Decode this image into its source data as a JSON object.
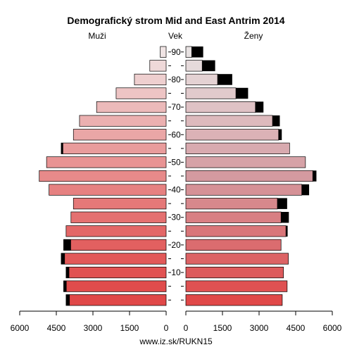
{
  "chart_data": {
    "type": "bar",
    "title": "Demografický strom Mid and East Antrim 2014",
    "left_label": "Muži",
    "center_label": "Vek",
    "right_label": "Ženy",
    "footer": "www.iz.sk/RUKN15",
    "age_ticks": [
      "10",
      "20",
      "30",
      "40",
      "50",
      "60",
      "70",
      "80",
      "90"
    ],
    "x_ticks_left": [
      "6000",
      "4500",
      "3000",
      "1500",
      "0"
    ],
    "x_ticks_right": [
      "0",
      "1500",
      "3000",
      "4500",
      "6000"
    ],
    "xlim": [
      0,
      6000
    ],
    "age_groups": [
      "0-4",
      "5-9",
      "10-14",
      "15-19",
      "20-24",
      "25-29",
      "30-34",
      "35-39",
      "40-44",
      "45-49",
      "50-54",
      "55-59",
      "60-64",
      "65-69",
      "70-74",
      "75-79",
      "80-84",
      "85-89",
      "90+"
    ],
    "series": [
      {
        "name": "Muži",
        "values": [
          4100,
          4200,
          4100,
          4300,
          4200,
          4100,
          3900,
          3800,
          4800,
          5200,
          4900,
          4300,
          3800,
          3550,
          2850,
          2050,
          1300,
          670,
          240
        ],
        "excess": [
          150,
          120,
          130,
          150,
          300,
          0,
          0,
          0,
          0,
          0,
          0,
          80,
          0,
          0,
          0,
          0,
          0,
          0,
          0
        ]
      },
      {
        "name": "Ženy",
        "values": [
          3950,
          4150,
          4000,
          4200,
          3900,
          4100,
          3900,
          3750,
          4750,
          5200,
          4900,
          4250,
          3800,
          3550,
          2850,
          2050,
          1300,
          670,
          240
        ],
        "excess": [
          0,
          0,
          0,
          0,
          0,
          70,
          320,
          400,
          300,
          150,
          0,
          0,
          130,
          300,
          330,
          500,
          600,
          530,
          470
        ]
      }
    ],
    "colors": {
      "excess": "#000000",
      "bar_stroke": "#000000",
      "young": "#e04848",
      "old": "#f0e4e4",
      "female_old": "#e8e2e2",
      "female_mid": "#d49aa0"
    }
  }
}
